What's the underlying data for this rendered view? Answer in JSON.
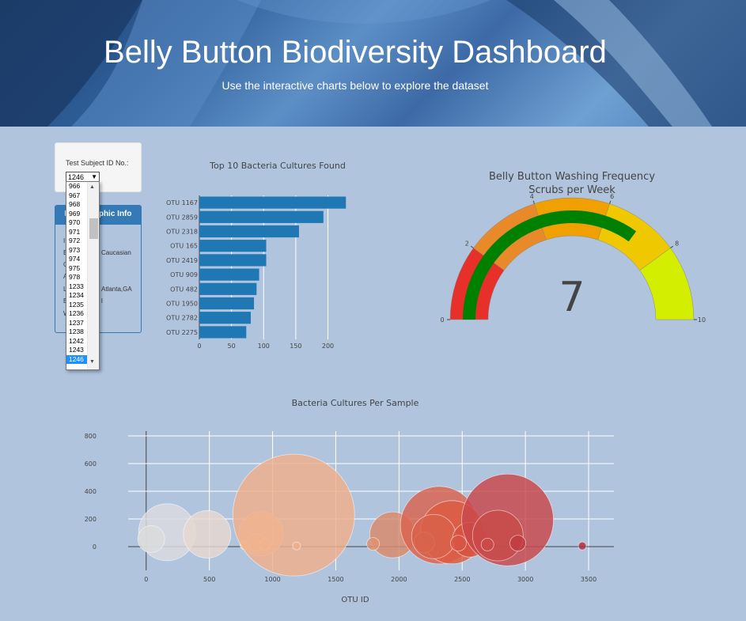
{
  "header": {
    "title": "Belly Button Biodiversity Dashboard",
    "subtitle": "Use the interactive charts below to explore the dataset"
  },
  "selector": {
    "label": "Test Subject ID No.:",
    "selected": "1246",
    "options": [
      "966",
      "967",
      "968",
      "969",
      "970",
      "971",
      "972",
      "973",
      "974",
      "975",
      "978",
      "1233",
      "1234",
      "1235",
      "1236",
      "1237",
      "1238",
      "1242",
      "1243",
      "1246"
    ]
  },
  "demographics": {
    "title": "Demographic Info",
    "visible_fragments": [
      "I",
      "E",
      "Caucasian",
      "G",
      "A",
      "L",
      "Atlanta,GA",
      "B",
      "l",
      "W"
    ]
  },
  "chart_data": [
    {
      "type": "bar",
      "orientation": "horizontal",
      "title": "Top 10 Bacteria Cultures Found",
      "categories": [
        "OTU 1167",
        "OTU 2859",
        "OTU 2318",
        "OTU 165",
        "OTU 2419",
        "OTU 909",
        "OTU 482",
        "OTU 1950",
        "OTU 2782",
        "OTU 2275"
      ],
      "values": [
        228,
        193,
        155,
        104,
        104,
        93,
        89,
        85,
        80,
        73
      ],
      "xlim": [
        0,
        240
      ],
      "xticks": [
        0,
        50,
        100,
        150,
        200
      ],
      "color": "#1f77b4"
    },
    {
      "type": "gauge",
      "title": "Belly Button Washing Frequency",
      "subtitle": "Scrubs per Week",
      "value": 7,
      "range": [
        0,
        10
      ],
      "tick_labels": [
        "0",
        "2",
        "4",
        "6",
        "8",
        "10"
      ],
      "steps": [
        {
          "range": [
            0,
            2
          ],
          "color": "#e8302a"
        },
        {
          "range": [
            2,
            4
          ],
          "color": "#e8892a"
        },
        {
          "range": [
            4,
            6
          ],
          "color": "#f0a000"
        },
        {
          "range": [
            6,
            8
          ],
          "color": "#f0c800"
        },
        {
          "range": [
            8,
            10
          ],
          "color": "#d4ee00"
        }
      ],
      "bar_color": "#008000"
    },
    {
      "type": "scatter",
      "title": "Bacteria Cultures Per Sample",
      "xlabel": "OTU ID",
      "xticks": [
        0,
        500,
        1000,
        1500,
        2000,
        2500,
        3000,
        3500
      ],
      "yticks": [
        0,
        200,
        400,
        600,
        800
      ],
      "xlim": [
        -80,
        3700
      ],
      "ylim": [
        -200,
        870
      ],
      "points": [
        {
          "x": 165,
          "y": 104,
          "r": 36,
          "c": "#dcdce0"
        },
        {
          "x": 40,
          "y": 55,
          "r": 17,
          "c": "#dcdcdc"
        },
        {
          "x": 482,
          "y": 89,
          "r": 30,
          "c": "#e8d8cf"
        },
        {
          "x": 909,
          "y": 93,
          "r": 28,
          "c": "#f2c4a6"
        },
        {
          "x": 870,
          "y": 30,
          "r": 11,
          "c": "#f0bf9e"
        },
        {
          "x": 940,
          "y": 15,
          "r": 7,
          "c": "#f1c0a0"
        },
        {
          "x": 780,
          "y": 12,
          "r": 6,
          "c": "#f1c6a8"
        },
        {
          "x": 1167,
          "y": 228,
          "r": 77,
          "c": "#efb08a"
        },
        {
          "x": 1190,
          "y": 5,
          "r": 5,
          "c": "#eeb088"
        },
        {
          "x": 1950,
          "y": 85,
          "r": 29,
          "c": "#d98a6a"
        },
        {
          "x": 1795,
          "y": 20,
          "r": 8,
          "c": "#e09070"
        },
        {
          "x": 2318,
          "y": 155,
          "r": 49,
          "c": "#d9634d"
        },
        {
          "x": 2419,
          "y": 104,
          "r": 40,
          "c": "#dd5a40"
        },
        {
          "x": 2200,
          "y": 30,
          "r": 13,
          "c": "#db6a50"
        },
        {
          "x": 2275,
          "y": 73,
          "r": 28,
          "c": "#d8604a"
        },
        {
          "x": 2560,
          "y": 50,
          "r": 22,
          "c": "#d85040"
        },
        {
          "x": 2470,
          "y": 25,
          "r": 10,
          "c": "#d85545"
        },
        {
          "x": 2859,
          "y": 193,
          "r": 58,
          "c": "#c9474a"
        },
        {
          "x": 2782,
          "y": 80,
          "r": 32,
          "c": "#c84a48"
        },
        {
          "x": 2700,
          "y": 15,
          "r": 8,
          "c": "#cb4a48"
        },
        {
          "x": 2940,
          "y": 25,
          "r": 10,
          "c": "#bf3a40"
        },
        {
          "x": 3450,
          "y": 5,
          "r": 5,
          "c": "#b0303a"
        }
      ]
    }
  ]
}
